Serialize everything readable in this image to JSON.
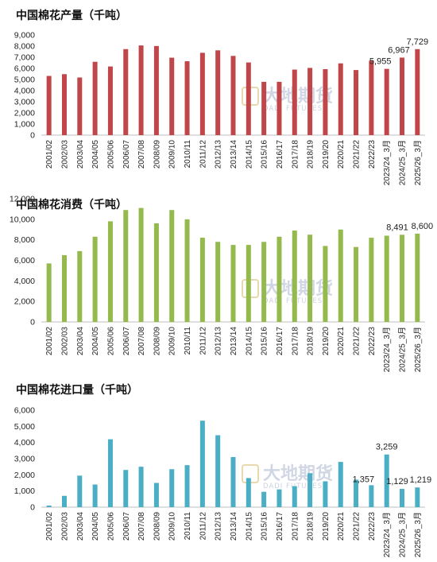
{
  "watermark": {
    "name": "大地期货",
    "sub": "DADI FUTURES"
  },
  "categories": [
    "2001/02",
    "2002/03",
    "2003/04",
    "2004/05",
    "2005/06",
    "2006/07",
    "2007/08",
    "2008/09",
    "2009/10",
    "2010/11",
    "2011/12",
    "2012/13",
    "2013/14",
    "2014/15",
    "2015/16",
    "2016/17",
    "2017/18",
    "2018/19",
    "2019/20",
    "2020/21",
    "2021/22",
    "2022/23",
    "2023/24_3月",
    "2024/25_3月",
    "2025/26_3月"
  ],
  "chart_data": [
    {
      "type": "bar",
      "title": "中国棉花产量（千吨）",
      "xlabel": "",
      "ylabel": "",
      "ylim": [
        0,
        9000
      ],
      "yticks": [
        "0",
        "1,000",
        "2,000",
        "3,000",
        "4,000",
        "5,000",
        "6,000",
        "7,000",
        "8,000",
        "9,000"
      ],
      "color": "#c0464a",
      "values": [
        5320,
        5480,
        5180,
        6590,
        6170,
        7730,
        8060,
        8010,
        6960,
        6640,
        7400,
        7620,
        7120,
        6530,
        4790,
        4790,
        5890,
        6040,
        5930,
        6450,
        5850,
        6690,
        5955,
        6967,
        7729
      ],
      "data_labels": [
        {
          "index": 22,
          "text": "5,955"
        },
        {
          "index": 23,
          "text": "6,967"
        },
        {
          "index": 24,
          "text": "7,729"
        }
      ]
    },
    {
      "type": "bar",
      "title": "中国棉花消费（千吨）",
      "xlabel": "",
      "ylabel": "",
      "ylim": [
        0,
        12000
      ],
      "yticks": [
        "0",
        "2,000",
        "4,000",
        "6,000",
        "8,000",
        "10,000",
        "12,000"
      ],
      "color": "#94b94c",
      "values": [
        5700,
        6500,
        6900,
        8300,
        9800,
        10900,
        11100,
        9600,
        10900,
        10000,
        8200,
        7800,
        7500,
        7500,
        7800,
        8300,
        8900,
        8500,
        7400,
        9000,
        7300,
        8200,
        8400,
        8491,
        8600
      ],
      "data_labels": [
        {
          "index": 23,
          "text": "8,491"
        },
        {
          "index": 24,
          "text": "8,600"
        }
      ]
    },
    {
      "type": "bar",
      "title": "中国棉花进口量（千吨）",
      "xlabel": "",
      "ylabel": "",
      "ylim": [
        0,
        6000
      ],
      "yticks": [
        "0",
        "1,000",
        "2,000",
        "3,000",
        "4,000",
        "5,000",
        "6,000"
      ],
      "color": "#4aaec4",
      "values": [
        100,
        700,
        1950,
        1400,
        4200,
        2300,
        2500,
        1500,
        2350,
        2600,
        5350,
        4450,
        3100,
        1800,
        950,
        1100,
        1300,
        2100,
        1600,
        2800,
        1700,
        1357,
        3259,
        1129,
        1219
      ],
      "data_labels": [
        {
          "index": 21,
          "text": "1,357"
        },
        {
          "index": 22,
          "text": "3,259"
        },
        {
          "index": 23,
          "text": "1,129"
        },
        {
          "index": 24,
          "text": "1,219"
        }
      ]
    }
  ]
}
